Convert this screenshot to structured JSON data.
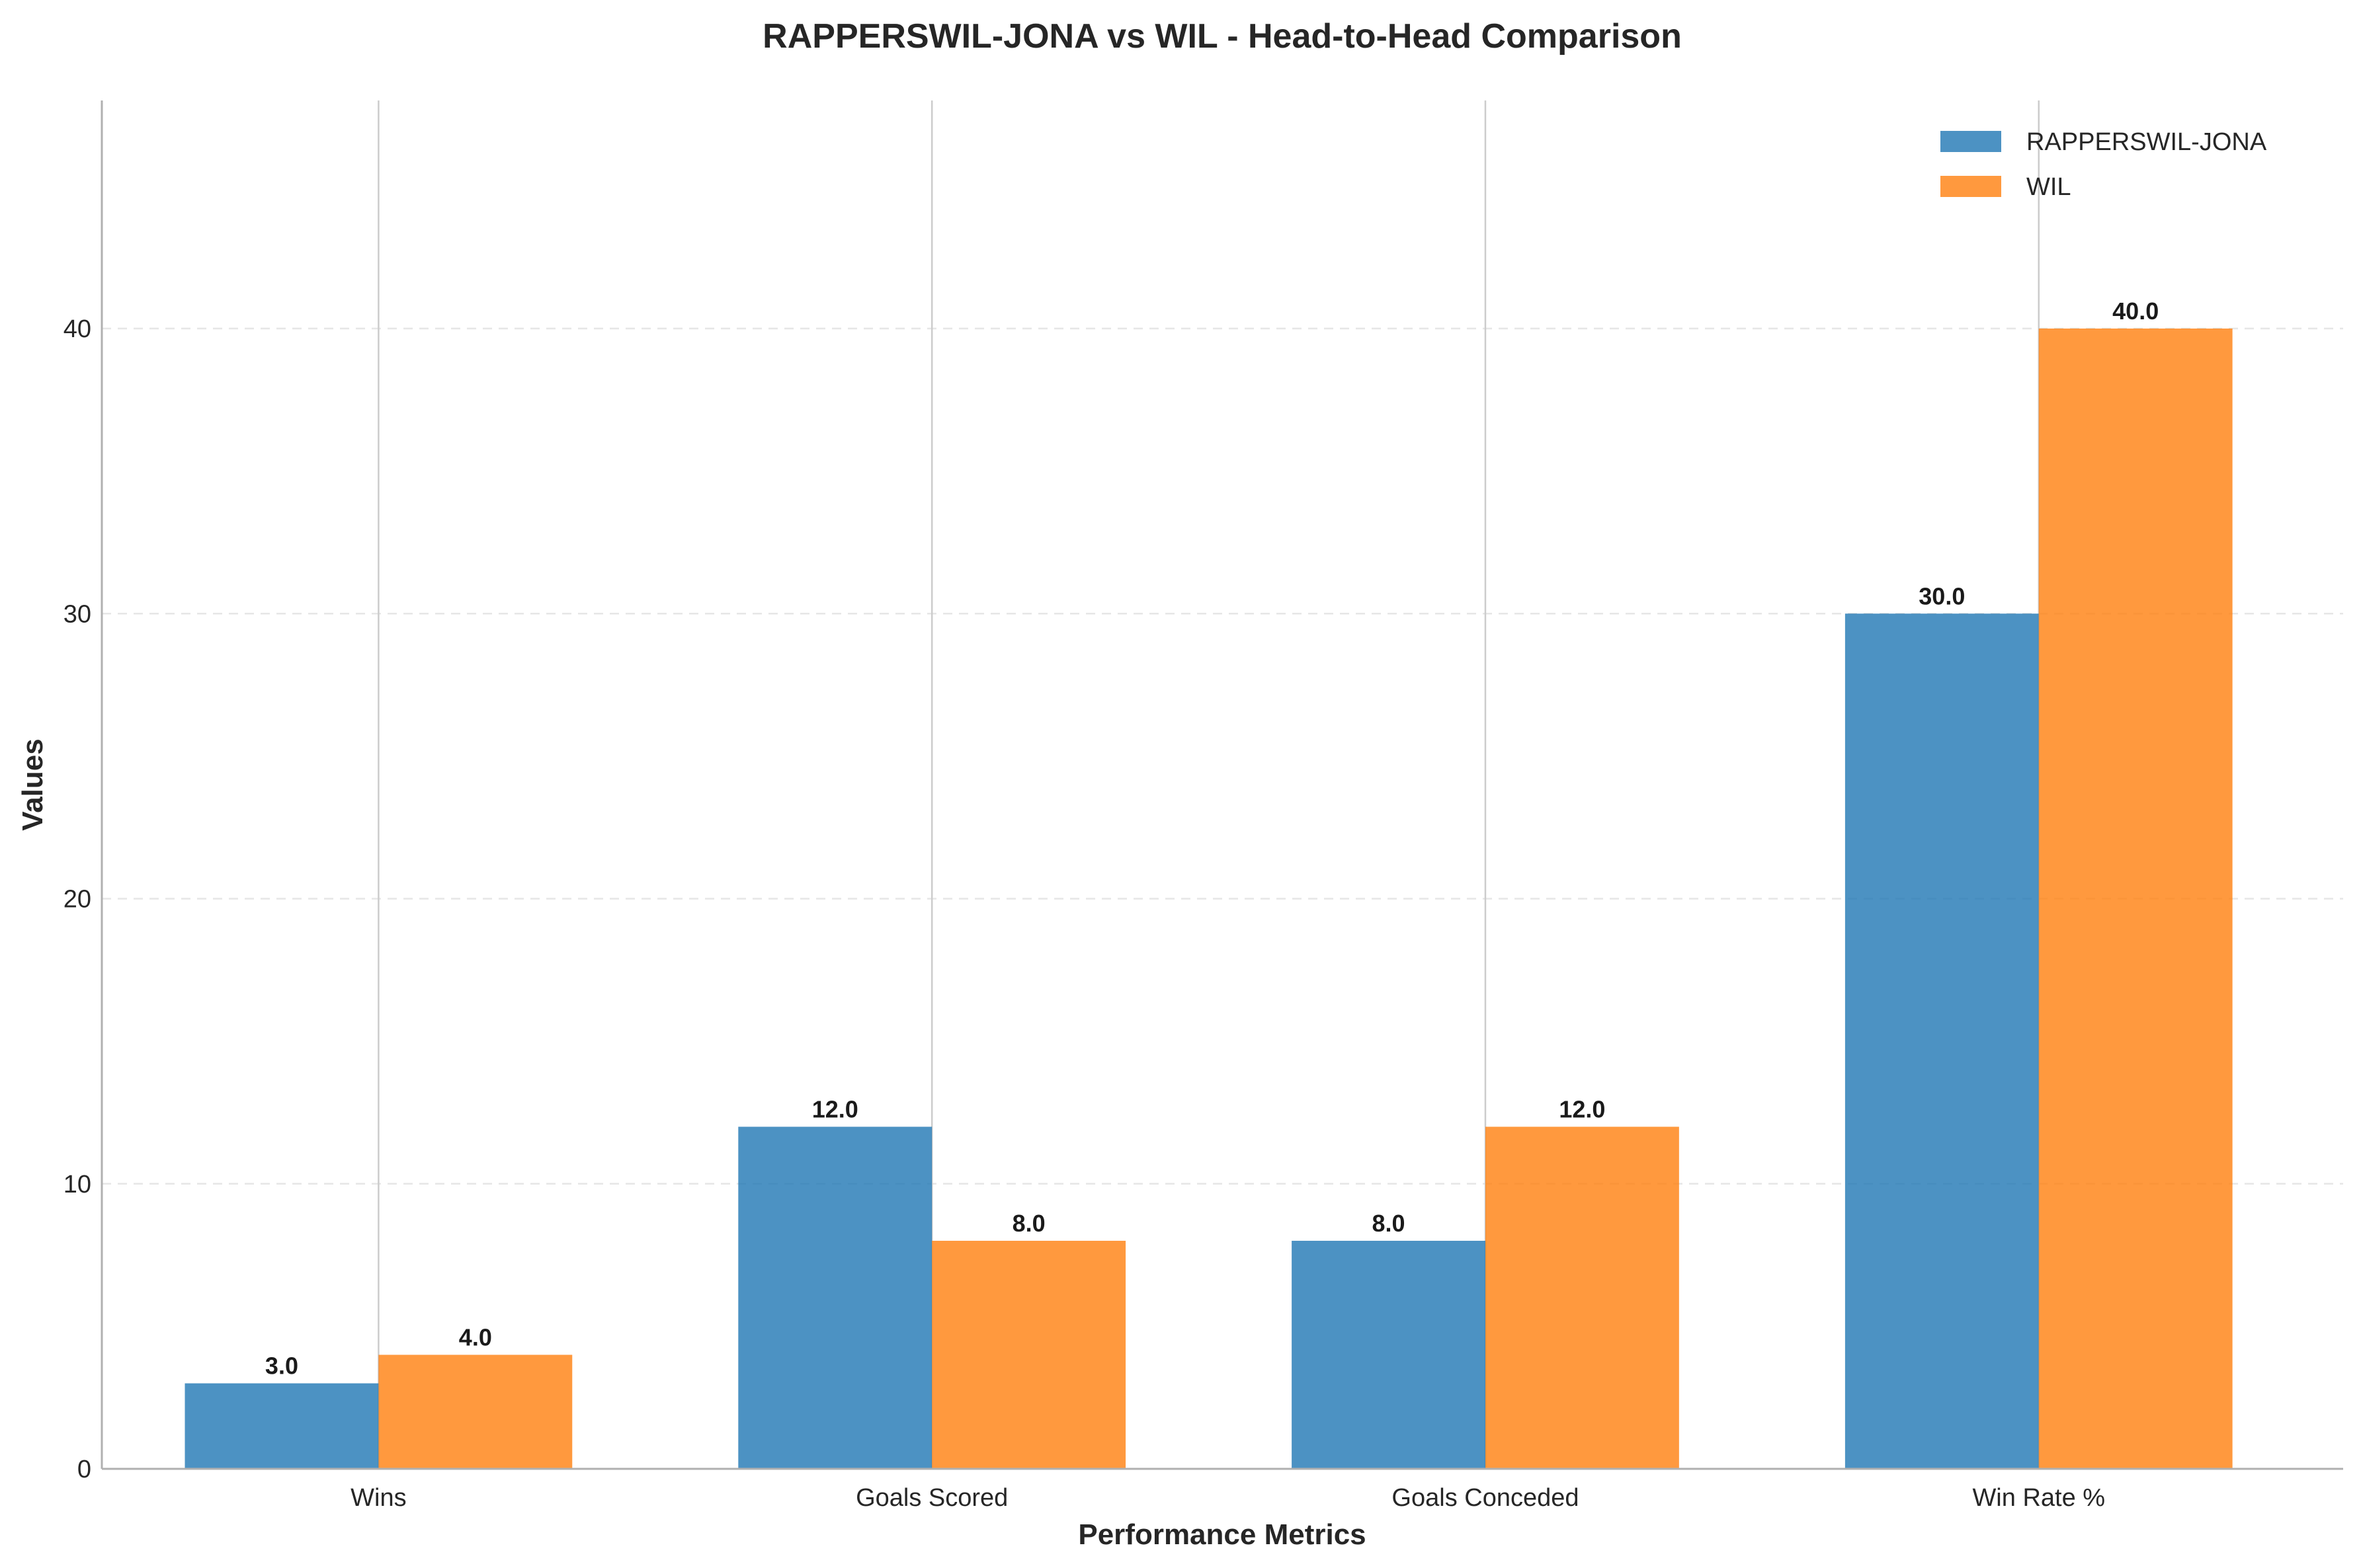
{
  "chart_data": {
    "type": "bar",
    "title": "RAPPERSWIL-JONA vs WIL - Head-to-Head Comparison",
    "xlabel": "Performance Metrics",
    "ylabel": "Values",
    "categories": [
      "Wins",
      "Goals Scored",
      "Goals Conceded",
      "Win Rate %"
    ],
    "series": [
      {
        "name": "RAPPERSWIL-JONA",
        "color": "#1f77b4",
        "values": [
          3,
          12,
          8,
          30
        ],
        "labels": [
          "3.0",
          "12.0",
          "8.0",
          "30.0"
        ]
      },
      {
        "name": "WIL",
        "color": "#ff7f0e",
        "values": [
          4,
          8,
          12,
          40
        ],
        "labels": [
          "4.0",
          "8.0",
          "12.0",
          "40.0"
        ]
      }
    ],
    "ylim": [
      0,
      48
    ],
    "yticks": [
      0,
      10,
      20,
      30,
      40
    ],
    "ytick_labels": [
      "0",
      "10",
      "20",
      "30",
      "40"
    ],
    "grid": {
      "y": true,
      "x": true
    },
    "legend": "top-right"
  }
}
